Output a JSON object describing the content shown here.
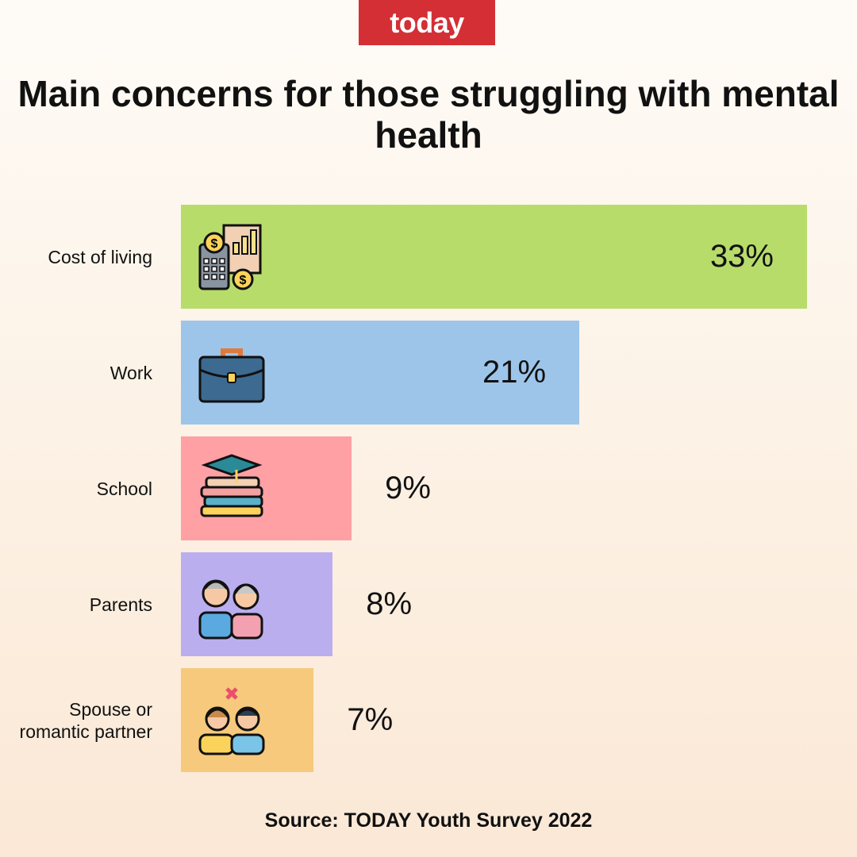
{
  "logo": "today",
  "chart_data": {
    "type": "bar",
    "orientation": "horizontal",
    "title": "Main concerns for those struggling with mental health",
    "categories": [
      "Cost of living",
      "Work",
      "School",
      "Parents",
      "Spouse or romantic partner"
    ],
    "values": [
      33,
      21,
      9,
      8,
      7
    ],
    "labels": [
      "33%",
      "21%",
      "9%",
      "8%",
      "7%"
    ],
    "colors": [
      "#b8dc6a",
      "#9dc5ea",
      "#ffa0a5",
      "#bbaeee",
      "#f6c97c"
    ],
    "icons": [
      "calculator-finance-icon",
      "briefcase-icon",
      "books-graduation-cap-icon",
      "parents-icon",
      "couple-conflict-icon"
    ],
    "xlim": [
      0,
      33
    ],
    "grid": false
  },
  "source": "Source: TODAY Youth Survey 2022"
}
